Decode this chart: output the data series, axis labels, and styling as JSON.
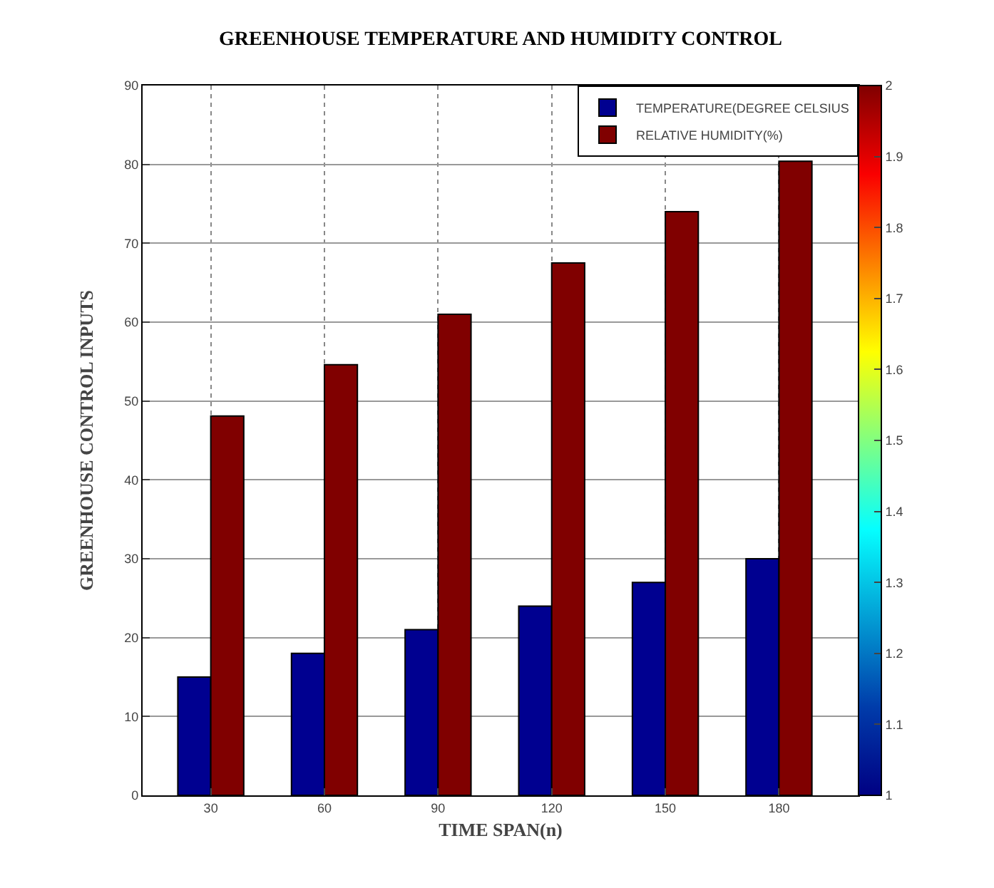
{
  "chart_data": {
    "type": "bar",
    "title": "GREENHOUSE TEMPERATURE AND HUMIDITY CONTROL",
    "xlabel": "TIME SPAN(n)",
    "ylabel": "GREENHOUSE CONTROL INPUTS",
    "categories": [
      "30",
      "60",
      "90",
      "120",
      "150",
      "180"
    ],
    "series": [
      {
        "name": "TEMPERATURE(DEGREE CELSIUS",
        "color": "#000090",
        "values": [
          15,
          18,
          21,
          24,
          27,
          30
        ]
      },
      {
        "name": "RELATIVE HUMIDITY(%)",
        "color": "#800000",
        "values": [
          48.1,
          54.6,
          61,
          67.5,
          74,
          80.4
        ]
      }
    ],
    "ylim": [
      0,
      90
    ],
    "yticks": [
      0,
      10,
      20,
      30,
      40,
      50,
      60,
      70,
      80,
      90
    ],
    "clim": [
      1,
      2
    ],
    "cticks": [
      1,
      1.1,
      1.2,
      1.3,
      1.4,
      1.5,
      1.6,
      1.7,
      1.8,
      1.9,
      2
    ],
    "grid": true,
    "legend": "top right"
  }
}
